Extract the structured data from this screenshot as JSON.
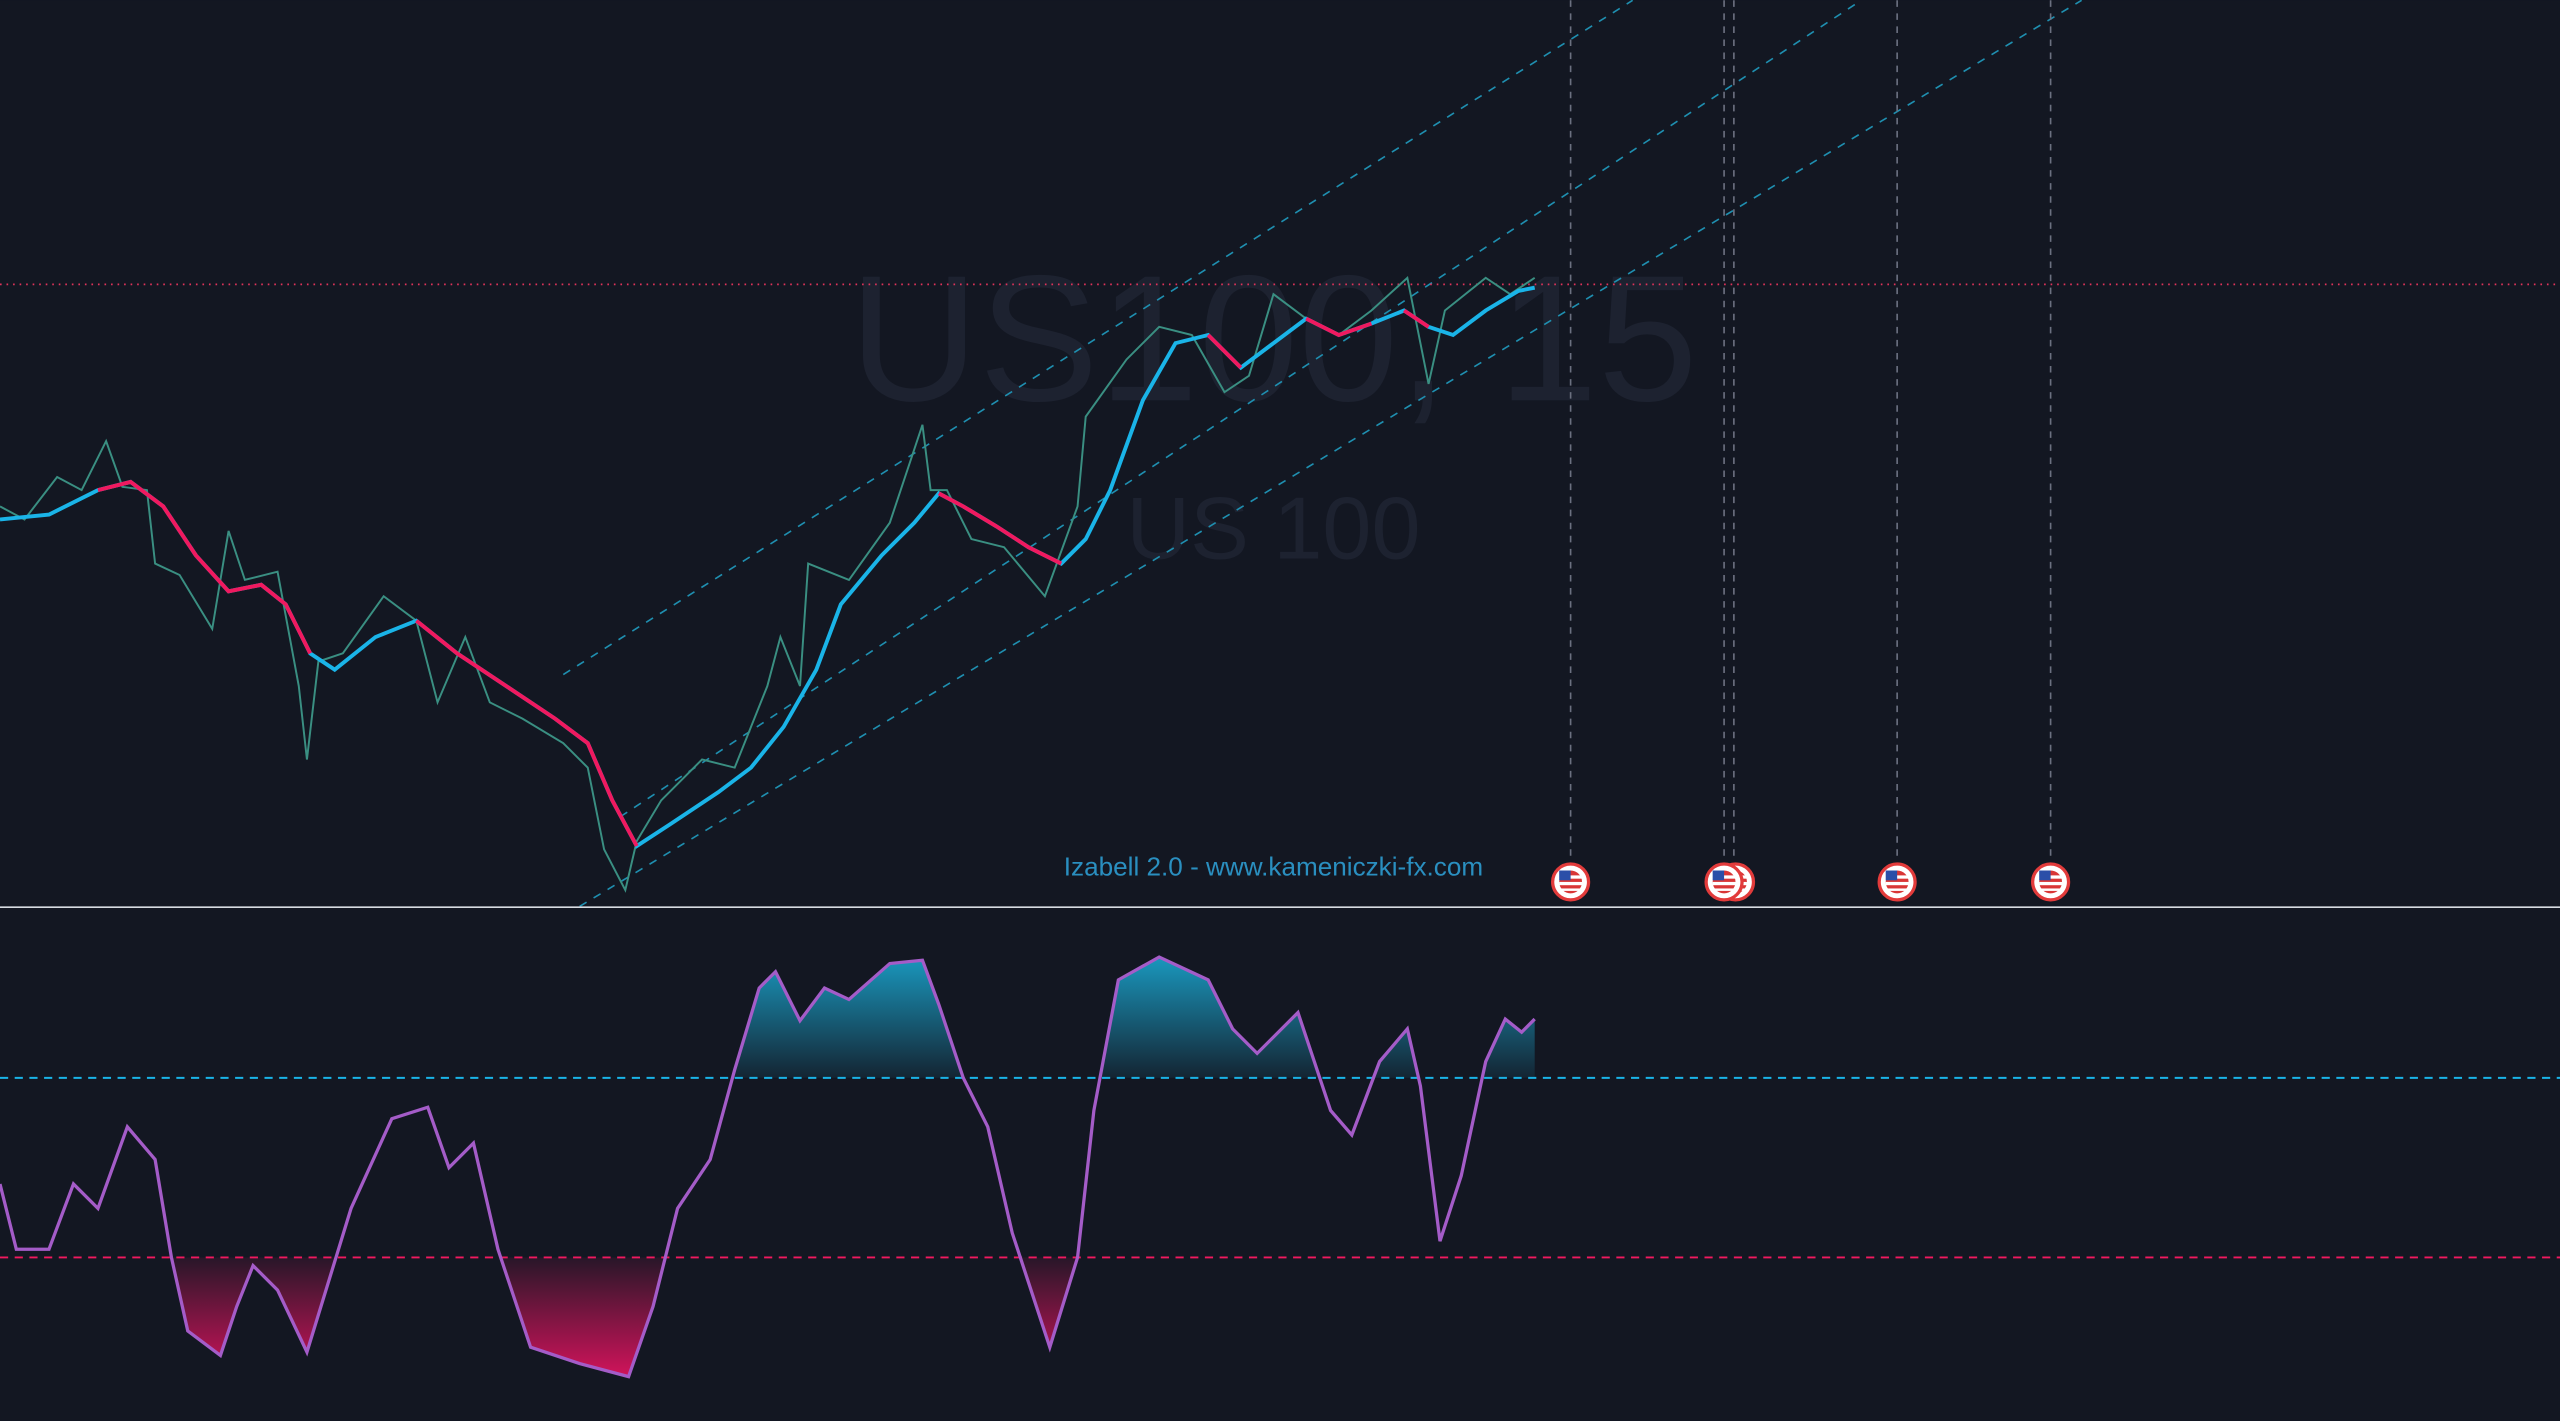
{
  "watermark": {
    "symbol": "US100, 15",
    "description": "US 100"
  },
  "indicator": {
    "label": "Izabell 2.0 - www.kameniczki-fx.com"
  }
}
